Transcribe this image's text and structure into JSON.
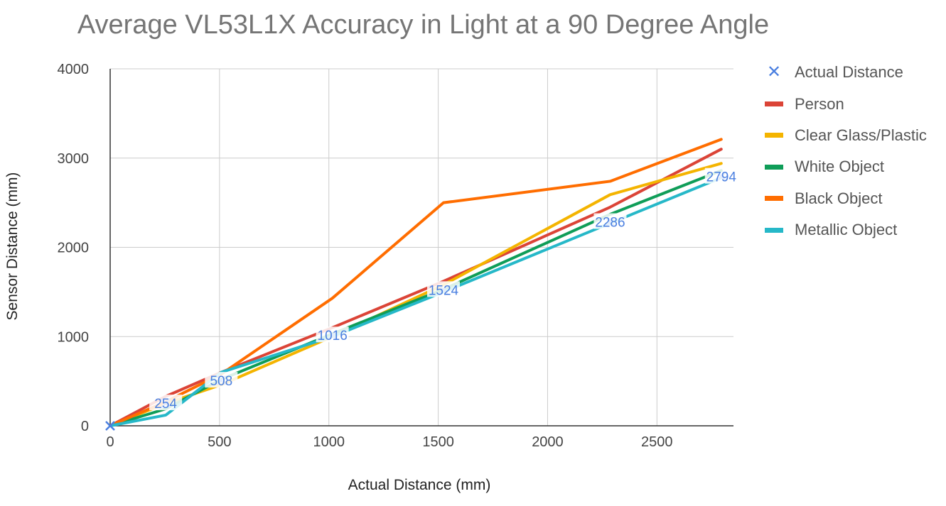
{
  "chart_data": {
    "type": "line",
    "title": "Average VL53L1X Accuracy in Light at a 90 Degree Angle",
    "xlabel": "Actual Distance (mm)",
    "ylabel": "Sensor Distance (mm)",
    "xlim": [
      0,
      2850
    ],
    "ylim": [
      0,
      4000
    ],
    "xticks": [
      0,
      500,
      1000,
      1500,
      2000,
      2500
    ],
    "yticks": [
      0,
      1000,
      2000,
      3000,
      4000
    ],
    "grid": true,
    "legend_position": "right",
    "x": [
      0,
      254,
      508,
      1016,
      1524,
      2286,
      2794
    ],
    "series": [
      {
        "name": "Actual Distance",
        "marker": "x",
        "color": "#4A7FE0",
        "values": [
          0,
          254,
          508,
          1016,
          1524,
          2286,
          2794
        ],
        "labels": [
          "0",
          "254",
          "508",
          "1016",
          "1524",
          "2286",
          "2794"
        ]
      },
      {
        "name": "Person",
        "color": "#DB4437",
        "values": [
          0,
          330,
          600,
          1100,
          1620,
          2450,
          3100
        ]
      },
      {
        "name": "Clear Glass/Plastic",
        "color": "#F4B400",
        "values": [
          0,
          250,
          460,
          1000,
          1580,
          2590,
          2940
        ]
      },
      {
        "name": "White Object",
        "color": "#0F9D58",
        "values": [
          0,
          190,
          520,
          1030,
          1530,
          2370,
          2860
        ]
      },
      {
        "name": "Black Object",
        "color": "#FF6D00",
        "values": [
          0,
          270,
          580,
          1430,
          2500,
          2740,
          3210
        ]
      },
      {
        "name": "Metallic Object",
        "color": "#26B8C8",
        "values": [
          0,
          120,
          600,
          1000,
          1500,
          2270,
          2780
        ]
      }
    ]
  }
}
